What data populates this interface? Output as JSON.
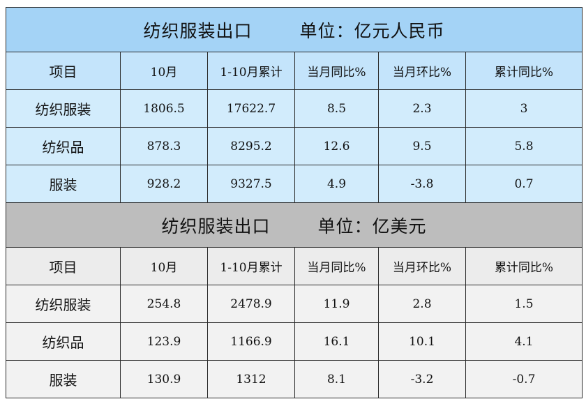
{
  "table_rmb": {
    "title": "纺织服装出口",
    "unit": "单位：亿元人民币",
    "headers": [
      "项目",
      "10月",
      "1-10月累计",
      "当月同比%",
      "当月环比%",
      "累计同比%"
    ],
    "rows": [
      [
        "纺织服装",
        "1806.5",
        "17622.7",
        "8.5",
        "2.3",
        "3"
      ],
      [
        "纺织品",
        "878.3",
        "8295.2",
        "12.6",
        "9.5",
        "5.8"
      ],
      [
        "服装",
        "928.2",
        "9327.5",
        "4.9",
        "-3.8",
        "0.7"
      ]
    ],
    "colors": {
      "title_bg": "#a4d3f6",
      "row_bg": "#d2ecfc"
    }
  },
  "table_usd": {
    "title": "纺织服装出口",
    "unit": "单位：亿美元",
    "headers": [
      "项目",
      "10月",
      "1-10月累计",
      "当月同比%",
      "当月环比%",
      "累计同比%"
    ],
    "rows": [
      [
        "纺织服装",
        "254.8",
        "2478.9",
        "11.9",
        "2.8",
        "1.5"
      ],
      [
        "纺织品",
        "123.9",
        "1166.9",
        "16.1",
        "10.1",
        "4.1"
      ],
      [
        "服装",
        "130.9",
        "1312",
        "8.1",
        "-3.2",
        "-0.7"
      ]
    ],
    "colors": {
      "title_bg": "#bdbdbd",
      "row_bg": "#f2f2f2"
    }
  }
}
